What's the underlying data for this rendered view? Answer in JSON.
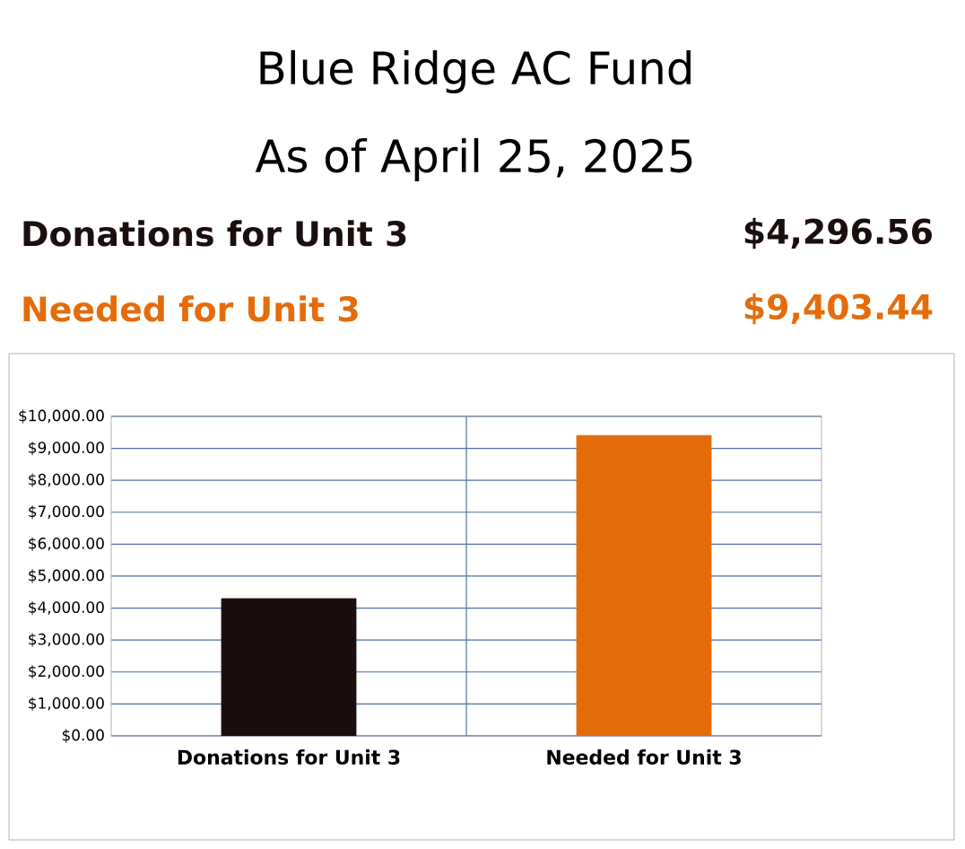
{
  "chart_data": {
    "type": "bar",
    "title": "Blue Ridge AC Fund",
    "subtitle": "As of April 25, 2025",
    "annotations": [
      "Donations for Unit 3",
      "$4,296.56",
      "Needed for Unit 3",
      "$9,403.44"
    ],
    "categories": [
      "Donations for Unit 3",
      "Needed for Unit 3"
    ],
    "values": [
      4296.56,
      9403.44
    ],
    "colors": [
      "#1b0e0e",
      "#e46c0a"
    ],
    "ylim": [
      0,
      10000
    ],
    "yticks": [
      {
        "value": 0,
        "label": "$0.00"
      },
      {
        "value": 1000,
        "label": "$1,000.00"
      },
      {
        "value": 2000,
        "label": "$2,000.00"
      },
      {
        "value": 3000,
        "label": "$3,000.00"
      },
      {
        "value": 4000,
        "label": "$4,000.00"
      },
      {
        "value": 5000,
        "label": "$5,000.00"
      },
      {
        "value": 6000,
        "label": "$6,000.00"
      },
      {
        "value": 7000,
        "label": "$7,000.00"
      },
      {
        "value": 8000,
        "label": "$8,000.00"
      },
      {
        "value": 9000,
        "label": "$9,000.00"
      },
      {
        "value": 10000,
        "label": "$10,000.00"
      }
    ],
    "grid": true
  }
}
